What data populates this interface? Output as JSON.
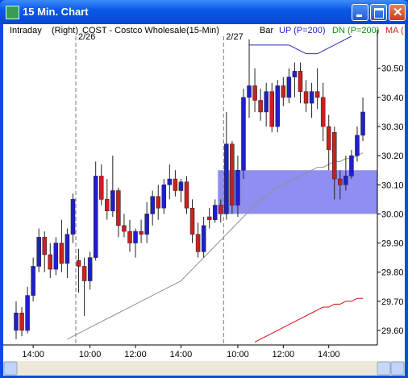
{
  "window": {
    "title": "15 Min. Chart"
  },
  "header": {
    "mode": "Intraday",
    "side": "(Right)",
    "symbol": "COST - Costco Wholesale",
    "interval": "(15-Min)",
    "style": "Bar",
    "up": "UP (P=200)",
    "dn": "DN (P=200)",
    "ma": "MA ("
  },
  "chart_data": {
    "type": "candlestick",
    "up_color": "#1f1fcc",
    "down_color": "#cc1f1f",
    "xlim": [
      -1.7,
      63.55
    ],
    "ylim": [
      29.55,
      30.61
    ],
    "yticks": [
      {
        "value": 30.5,
        "label": "30.50"
      },
      {
        "value": 30.4,
        "label": "30.40"
      },
      {
        "value": 30.3,
        "label": "30.30"
      },
      {
        "value": 30.2,
        "label": "30.20"
      },
      {
        "value": 30.1,
        "label": "30.10"
      },
      {
        "value": 30.0,
        "label": "30.00"
      },
      {
        "value": 29.9,
        "label": "29.90"
      },
      {
        "value": 29.8,
        "label": "29.80"
      },
      {
        "value": 29.7,
        "label": "29.70"
      },
      {
        "value": 29.6,
        "label": "29.60"
      }
    ],
    "xticks": [
      {
        "value": 3,
        "label": "14:00"
      },
      {
        "value": 13,
        "label": "10:00"
      },
      {
        "value": 21,
        "label": "12:00"
      },
      {
        "value": 29,
        "label": "14:00"
      },
      {
        "value": 39,
        "label": "10:00"
      },
      {
        "value": 47,
        "label": "12:00"
      },
      {
        "value": 55,
        "label": "14:00"
      }
    ],
    "day_breaks": [
      {
        "value": 10.5,
        "label": "2/26"
      },
      {
        "value": 36.5,
        "label": "2/27"
      }
    ],
    "highlight": {
      "from": 30.0,
      "to": 30.15,
      "start": 35.5,
      "color": "#7b7bf0"
    },
    "candles": [
      [
        29.6,
        29.7,
        29.57,
        29.66
      ],
      [
        29.66,
        29.68,
        29.58,
        29.6
      ],
      [
        29.6,
        29.75,
        29.59,
        29.72
      ],
      [
        29.72,
        29.85,
        29.7,
        29.82
      ],
      [
        29.82,
        29.95,
        29.8,
        29.92
      ],
      [
        29.92,
        29.94,
        29.8,
        29.86
      ],
      [
        29.86,
        29.9,
        29.78,
        29.81
      ],
      [
        29.81,
        29.92,
        29.79,
        29.9
      ],
      [
        29.9,
        29.98,
        29.8,
        29.83
      ],
      [
        29.83,
        29.95,
        29.78,
        29.93
      ],
      [
        29.93,
        30.07,
        29.9,
        30.05
      ],
      [
        29.84,
        29.88,
        29.73,
        29.82
      ],
      [
        29.82,
        29.85,
        29.65,
        29.77
      ],
      [
        29.77,
        29.87,
        29.74,
        29.85
      ],
      [
        29.85,
        30.18,
        29.84,
        30.13
      ],
      [
        30.13,
        30.17,
        30.03,
        30.05
      ],
      [
        30.05,
        30.12,
        29.98,
        30.01
      ],
      [
        30.01,
        30.2,
        29.99,
        30.08
      ],
      [
        30.08,
        30.09,
        29.92,
        29.96
      ],
      [
        29.96,
        30.0,
        29.92,
        29.94
      ],
      [
        29.94,
        29.98,
        29.87,
        29.9
      ],
      [
        29.9,
        29.95,
        29.85,
        29.94
      ],
      [
        29.94,
        29.98,
        29.9,
        29.93
      ],
      [
        29.93,
        30.04,
        29.9,
        30.0
      ],
      [
        30.0,
        30.08,
        29.96,
        30.06
      ],
      [
        30.06,
        30.1,
        29.98,
        30.02
      ],
      [
        30.02,
        30.12,
        30.0,
        30.1
      ],
      [
        30.1,
        30.17,
        30.05,
        30.12
      ],
      [
        30.12,
        30.15,
        30.06,
        30.08
      ],
      [
        30.08,
        30.12,
        30.04,
        30.11
      ],
      [
        30.11,
        30.13,
        30.0,
        30.02
      ],
      [
        30.02,
        30.05,
        29.9,
        29.93
      ],
      [
        29.93,
        29.97,
        29.85,
        29.87
      ],
      [
        29.87,
        29.99,
        29.85,
        29.96
      ],
      [
        29.99,
        30.02,
        29.95,
        29.98
      ],
      [
        29.98,
        30.05,
        29.97,
        30.03
      ],
      [
        30.03,
        30.05,
        29.97,
        30.0
      ],
      [
        30.0,
        30.35,
        29.98,
        30.24
      ],
      [
        30.24,
        30.25,
        30.0,
        30.03
      ],
      [
        30.03,
        30.2,
        29.99,
        30.15
      ],
      [
        30.15,
        30.43,
        30.12,
        30.4
      ],
      [
        30.4,
        30.6,
        30.33,
        30.44
      ],
      [
        30.44,
        30.5,
        30.35,
        30.39
      ],
      [
        30.39,
        30.43,
        30.32,
        30.35
      ],
      [
        30.35,
        30.45,
        30.3,
        30.42
      ],
      [
        30.42,
        30.45,
        30.28,
        30.3
      ],
      [
        30.3,
        30.46,
        30.28,
        30.44
      ],
      [
        30.44,
        30.47,
        30.37,
        30.4
      ],
      [
        30.4,
        30.5,
        30.38,
        30.47
      ],
      [
        30.47,
        30.52,
        30.4,
        30.49
      ],
      [
        30.49,
        30.52,
        30.38,
        30.42
      ],
      [
        30.42,
        30.46,
        30.35,
        30.38
      ],
      [
        30.38,
        30.45,
        30.33,
        30.42
      ],
      [
        30.42,
        30.5,
        30.36,
        30.4
      ],
      [
        30.4,
        30.45,
        30.25,
        30.3
      ],
      [
        30.3,
        30.34,
        30.15,
        30.22
      ],
      [
        30.28,
        30.3,
        30.05,
        30.12
      ],
      [
        30.12,
        30.15,
        30.05,
        30.1
      ],
      [
        30.1,
        30.2,
        30.08,
        30.13
      ],
      [
        30.13,
        30.22,
        30.12,
        30.2
      ],
      [
        30.2,
        30.3,
        30.18,
        30.27
      ],
      [
        30.27,
        30.4,
        30.25,
        30.35
      ]
    ],
    "series": [
      {
        "color": "#909090",
        "values": [
          null,
          null,
          null,
          null,
          null,
          null,
          null,
          null,
          null,
          29.57,
          29.58,
          29.59,
          29.6,
          29.61,
          29.62,
          29.63,
          29.64,
          29.65,
          29.66,
          29.67,
          29.68,
          29.69,
          29.7,
          29.71,
          29.72,
          29.73,
          29.74,
          29.75,
          29.76,
          29.77,
          29.79,
          29.81,
          29.83,
          29.85,
          29.87,
          29.89,
          29.91,
          29.93,
          29.95,
          29.97,
          29.99,
          30.01,
          30.03,
          30.05,
          30.06,
          30.08,
          30.09,
          30.1,
          30.11,
          30.12,
          30.13,
          30.14,
          30.15,
          30.16,
          30.16,
          30.17,
          30.18,
          30.18,
          30.19,
          30.19,
          30.2,
          30.21
        ]
      },
      {
        "color": "#2a2ab8",
        "values": [
          null,
          null,
          null,
          null,
          null,
          null,
          null,
          null,
          null,
          null,
          null,
          null,
          null,
          null,
          null,
          null,
          null,
          null,
          null,
          null,
          null,
          null,
          null,
          null,
          null,
          null,
          null,
          null,
          null,
          null,
          null,
          null,
          null,
          null,
          null,
          null,
          null,
          null,
          null,
          null,
          null,
          30.58,
          30.58,
          30.58,
          30.58,
          30.58,
          30.58,
          30.58,
          30.58,
          30.57,
          30.56,
          30.55,
          30.55,
          30.55,
          30.56,
          30.57,
          30.58,
          30.59,
          30.6,
          30.61,
          null,
          null
        ]
      },
      {
        "color": "#d01010",
        "values": [
          null,
          null,
          null,
          null,
          null,
          null,
          null,
          null,
          null,
          null,
          null,
          null,
          null,
          null,
          null,
          null,
          null,
          null,
          null,
          null,
          null,
          null,
          null,
          null,
          null,
          null,
          null,
          null,
          null,
          null,
          null,
          null,
          null,
          null,
          null,
          null,
          null,
          null,
          null,
          null,
          null,
          null,
          29.56,
          29.57,
          29.58,
          29.59,
          29.6,
          29.61,
          29.62,
          29.63,
          29.64,
          29.65,
          29.66,
          29.67,
          29.68,
          29.68,
          29.69,
          29.69,
          29.7,
          29.7,
          29.71,
          29.71
        ]
      }
    ]
  }
}
